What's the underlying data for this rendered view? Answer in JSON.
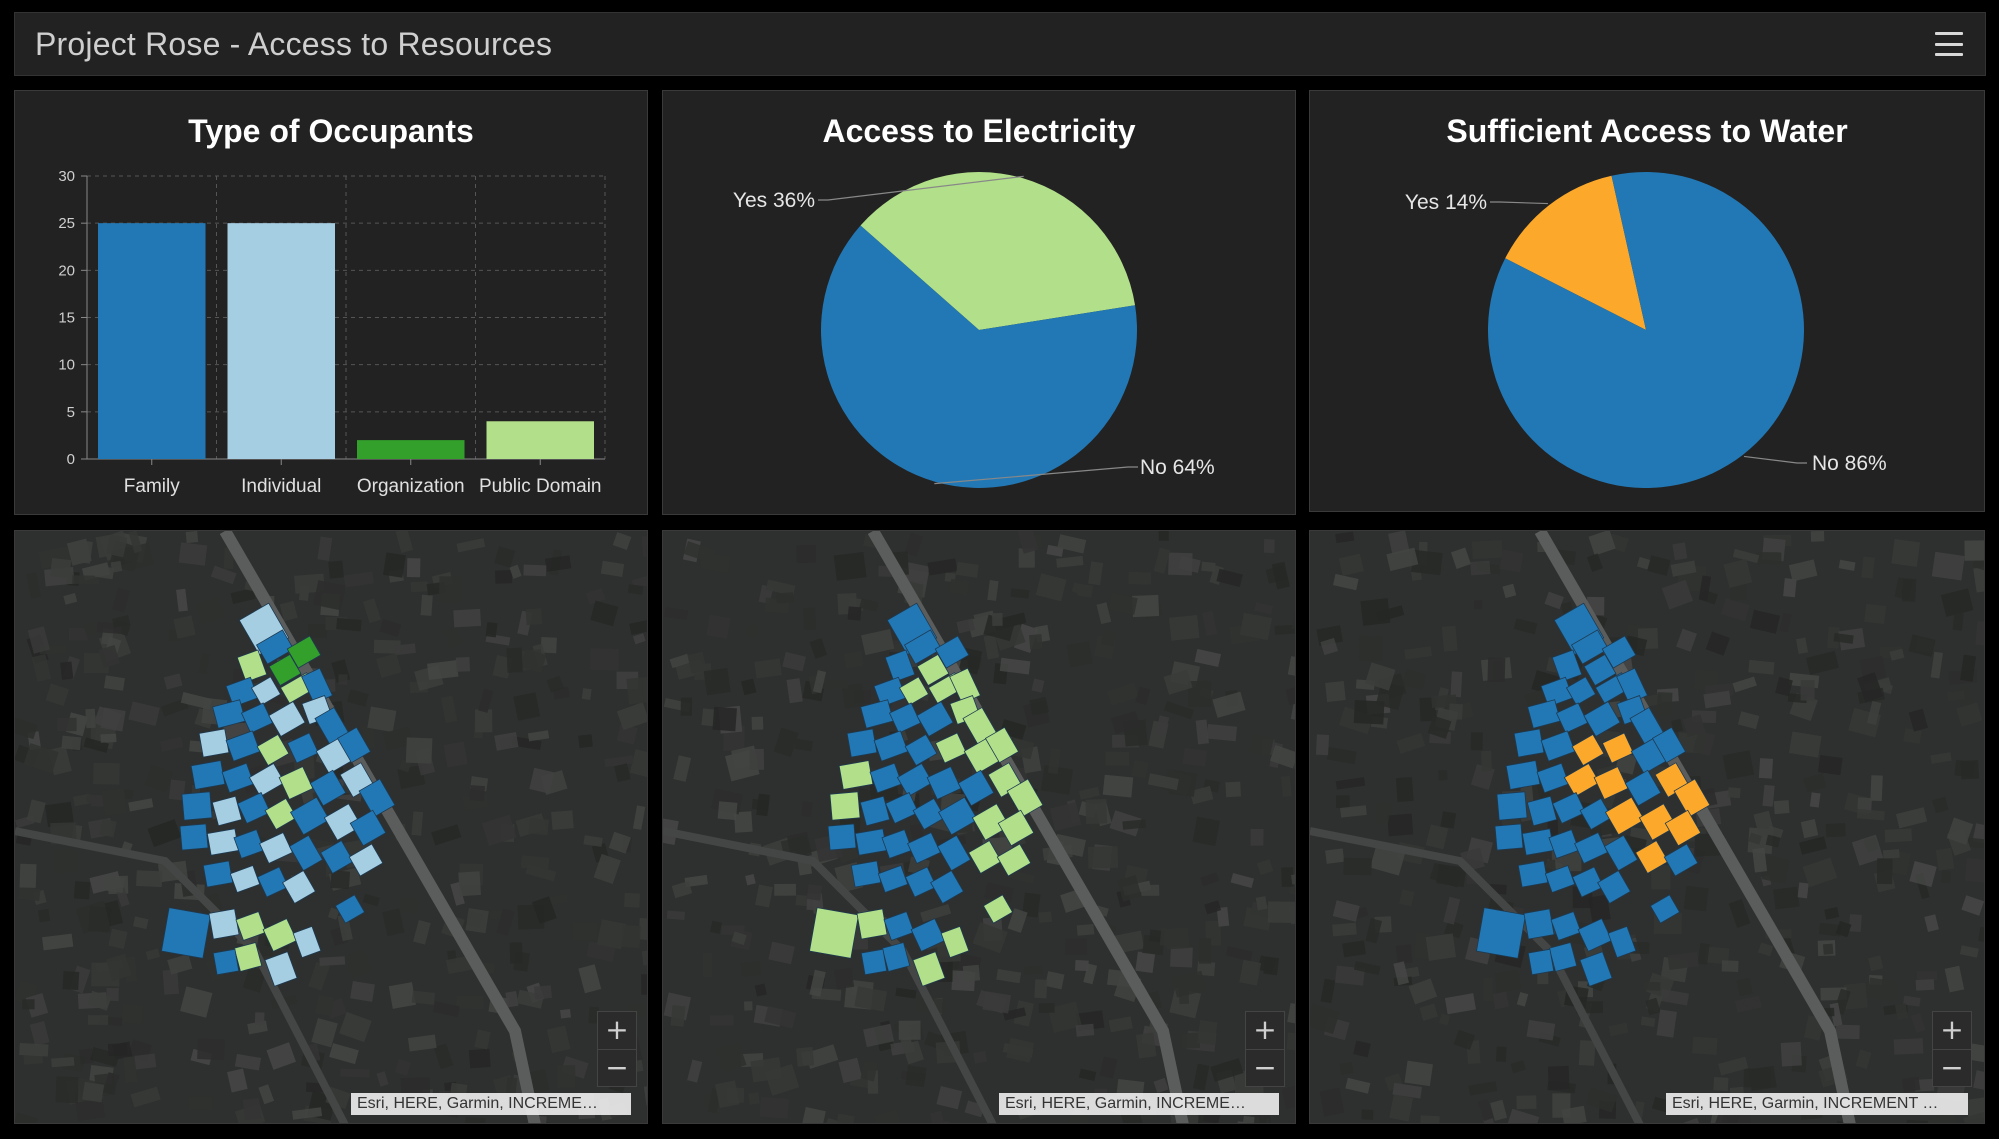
{
  "header": {
    "title": "Project Rose - Access to Resources",
    "menu_icon": "hamburger-menu-icon"
  },
  "panels": {
    "occupants": {
      "title": "Type of Occupants"
    },
    "electricity": {
      "title": "Access to Electricity"
    },
    "water": {
      "title": "Sufficient Access to Water"
    }
  },
  "chart_data": [
    {
      "type": "bar",
      "title": "Type of Occupants",
      "categories": [
        "Family",
        "Individual",
        "Organization",
        "Public Domain"
      ],
      "values": [
        25,
        25,
        2,
        4
      ],
      "colors": [
        "#2278b5",
        "#a6cee3",
        "#33a02c",
        "#b2df8a"
      ],
      "ylim": [
        0,
        30
      ],
      "yticks": [
        0,
        5,
        10,
        15,
        20,
        25,
        30
      ],
      "grid": true
    },
    {
      "type": "pie",
      "title": "Access to Electricity",
      "slices": [
        {
          "label": "Yes 36%",
          "value": 36,
          "color": "#b2df8a"
        },
        {
          "label": "No 64%",
          "value": 64,
          "color": "#2278b5"
        }
      ]
    },
    {
      "type": "pie",
      "title": "Sufficient Access to Water",
      "slices": [
        {
          "label": "Yes 14%",
          "value": 14,
          "color": "#fca82b"
        },
        {
          "label": "No 86%",
          "value": 86,
          "color": "#2278b5"
        }
      ]
    }
  ],
  "maps": [
    {
      "attribution": "Esri, HERE, Garmin, INCREME…",
      "zoom_in": "+",
      "zoom_out": "−"
    },
    {
      "attribution": "Esri, HERE, Garmin, INCREME…",
      "zoom_in": "+",
      "zoom_out": "−"
    },
    {
      "attribution": "Esri, HERE, Garmin, INCREMENT …",
      "zoom_in": "+",
      "zoom_out": "−"
    }
  ],
  "colors": {
    "blue": "#2278b5",
    "light_blue": "#a6cee3",
    "green": "#33a02c",
    "light_green": "#b2df8a",
    "orange": "#fca82b",
    "panel": "#222222"
  }
}
